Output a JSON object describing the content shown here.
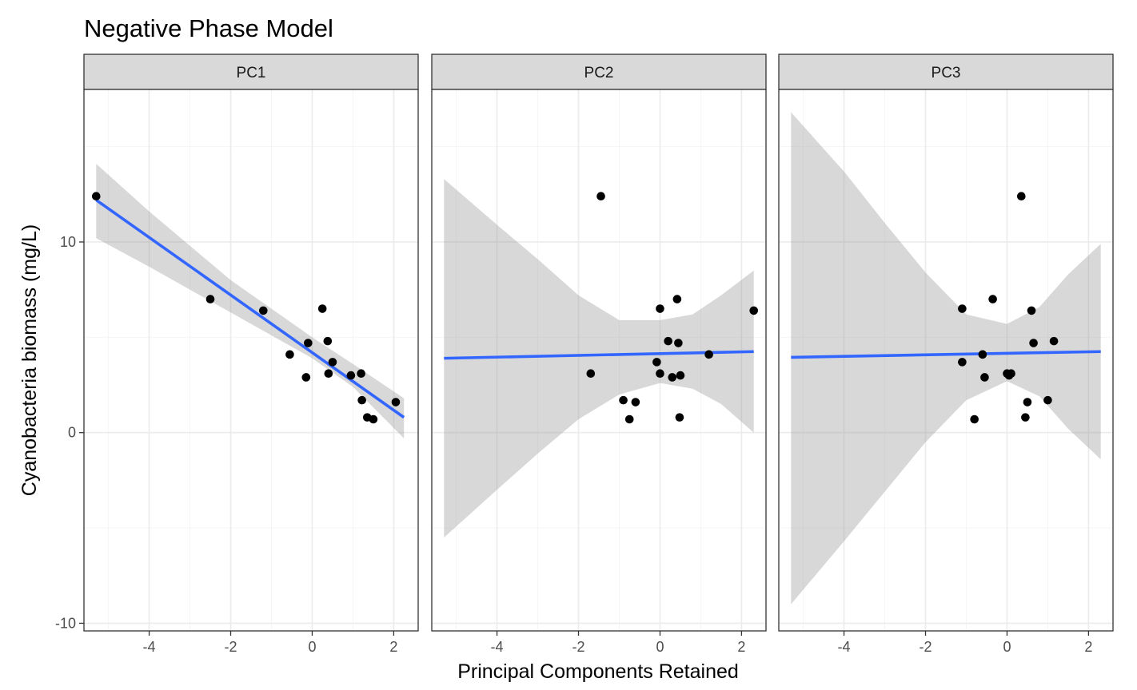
{
  "chart_data": {
    "type": "scatter",
    "title": "Negative Phase Model",
    "xlabel": "Principal Components Retained",
    "ylabel": "Cyanobacteria biomass (mg/L)",
    "xlim": [
      -5.6,
      2.6
    ],
    "ylim": [
      -10.4,
      18.0
    ],
    "x_ticks": [
      -4,
      -2,
      0,
      2
    ],
    "y_ticks": [
      -10,
      0,
      10
    ],
    "grid": true,
    "legend": "none",
    "colors": {
      "panel_border": "#333333",
      "strip_fill": "#d9d9d9",
      "grid_major": "#ebebeb",
      "grid_minor": "#f5f5f5",
      "points": "#000000",
      "fit_line": "#3366ff",
      "confidence_band": "#999999"
    },
    "panels": [
      {
        "name": "PC1",
        "points": [
          {
            "x": -5.3,
            "y": 12.4
          },
          {
            "x": -2.5,
            "y": 7.0
          },
          {
            "x": -1.2,
            "y": 6.4
          },
          {
            "x": -0.55,
            "y": 4.1
          },
          {
            "x": -0.15,
            "y": 2.9
          },
          {
            "x": -0.1,
            "y": 4.7
          },
          {
            "x": 0.25,
            "y": 6.5
          },
          {
            "x": 0.38,
            "y": 4.8
          },
          {
            "x": 0.4,
            "y": 3.1
          },
          {
            "x": 0.5,
            "y": 3.7
          },
          {
            "x": 0.95,
            "y": 3.0
          },
          {
            "x": 1.2,
            "y": 3.1
          },
          {
            "x": 1.22,
            "y": 1.7
          },
          {
            "x": 1.35,
            "y": 0.8
          },
          {
            "x": 1.5,
            "y": 0.7
          },
          {
            "x": 2.05,
            "y": 1.6
          }
        ],
        "fit": {
          "x0": -5.3,
          "y0": 12.2,
          "x1": 2.25,
          "y1": 0.8
        },
        "band": [
          {
            "x": -5.3,
            "lo": 10.2,
            "hi": 14.1
          },
          {
            "x": -4.0,
            "lo": 8.7,
            "hi": 11.6
          },
          {
            "x": -2.0,
            "lo": 6.3,
            "hi": 8.0
          },
          {
            "x": 0.0,
            "lo": 3.9,
            "hi": 5.0
          },
          {
            "x": 1.0,
            "lo": 2.4,
            "hi": 3.6
          },
          {
            "x": 2.25,
            "lo": -0.3,
            "hi": 1.8
          }
        ]
      },
      {
        "name": "PC2",
        "points": [
          {
            "x": -1.45,
            "y": 12.4
          },
          {
            "x": -1.7,
            "y": 3.1
          },
          {
            "x": -0.9,
            "y": 1.7
          },
          {
            "x": -0.75,
            "y": 0.7
          },
          {
            "x": -0.6,
            "y": 1.6
          },
          {
            "x": -0.08,
            "y": 3.7
          },
          {
            "x": 0.0,
            "y": 6.5
          },
          {
            "x": 0.0,
            "y": 3.1
          },
          {
            "x": 0.2,
            "y": 4.8
          },
          {
            "x": 0.3,
            "y": 2.9
          },
          {
            "x": 0.42,
            "y": 7.0
          },
          {
            "x": 0.45,
            "y": 4.7
          },
          {
            "x": 0.5,
            "y": 3.0
          },
          {
            "x": 0.48,
            "y": 0.8
          },
          {
            "x": 1.2,
            "y": 4.1
          },
          {
            "x": 2.3,
            "y": 6.4
          }
        ],
        "fit": {
          "x0": -5.3,
          "y0": 3.9,
          "x1": 2.3,
          "y1": 4.25
        },
        "band": [
          {
            "x": -5.3,
            "lo": -5.5,
            "hi": 13.3
          },
          {
            "x": -4.0,
            "lo": -3.0,
            "hi": 10.9
          },
          {
            "x": -3.0,
            "lo": -1.1,
            "hi": 9.1
          },
          {
            "x": -2.0,
            "lo": 0.7,
            "hi": 7.2
          },
          {
            "x": -1.0,
            "lo": 2.0,
            "hi": 5.9
          },
          {
            "x": 0.0,
            "lo": 2.6,
            "hi": 5.9
          },
          {
            "x": 0.8,
            "lo": 2.3,
            "hi": 6.2
          },
          {
            "x": 1.5,
            "lo": 1.5,
            "hi": 7.2
          },
          {
            "x": 2.3,
            "lo": 0.0,
            "hi": 8.5
          }
        ]
      },
      {
        "name": "PC3",
        "points": [
          {
            "x": 0.35,
            "y": 12.4
          },
          {
            "x": -1.1,
            "y": 6.5
          },
          {
            "x": -0.35,
            "y": 7.0
          },
          {
            "x": 0.6,
            "y": 6.4
          },
          {
            "x": 0.65,
            "y": 4.7
          },
          {
            "x": 1.15,
            "y": 4.8
          },
          {
            "x": -0.6,
            "y": 4.1
          },
          {
            "x": -1.1,
            "y": 3.7
          },
          {
            "x": -0.55,
            "y": 2.9
          },
          {
            "x": 0.0,
            "y": 3.1
          },
          {
            "x": 0.05,
            "y": 3.0
          },
          {
            "x": 0.1,
            "y": 3.1
          },
          {
            "x": 0.5,
            "y": 1.6
          },
          {
            "x": 1.0,
            "y": 1.7
          },
          {
            "x": -0.8,
            "y": 0.7
          },
          {
            "x": 0.45,
            "y": 0.8
          }
        ],
        "fit": {
          "x0": -5.3,
          "y0": 3.95,
          "x1": 2.3,
          "y1": 4.25
        },
        "band": [
          {
            "x": -5.3,
            "lo": -9.0,
            "hi": 16.8
          },
          {
            "x": -4.0,
            "lo": -5.7,
            "hi": 13.7
          },
          {
            "x": -3.0,
            "lo": -3.1,
            "hi": 11.0
          },
          {
            "x": -2.0,
            "lo": -0.5,
            "hi": 8.4
          },
          {
            "x": -1.0,
            "lo": 1.7,
            "hi": 6.2
          },
          {
            "x": 0.0,
            "lo": 2.7,
            "hi": 5.7
          },
          {
            "x": 0.8,
            "lo": 1.9,
            "hi": 6.6
          },
          {
            "x": 1.5,
            "lo": 0.2,
            "hi": 8.3
          },
          {
            "x": 2.3,
            "lo": -1.4,
            "hi": 9.9
          }
        ]
      }
    ]
  }
}
